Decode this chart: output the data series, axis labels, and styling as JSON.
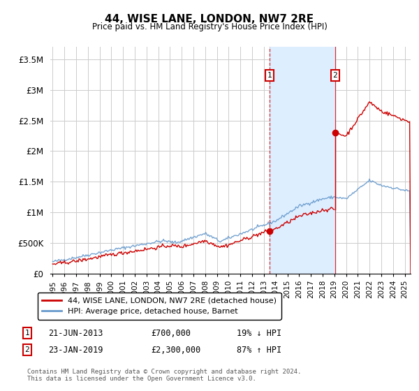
{
  "title": "44, WISE LANE, LONDON, NW7 2RE",
  "subtitle": "Price paid vs. HM Land Registry's House Price Index (HPI)",
  "ylabel_ticks": [
    "£0",
    "£500K",
    "£1M",
    "£1.5M",
    "£2M",
    "£2.5M",
    "£3M",
    "£3.5M"
  ],
  "ytick_values": [
    0,
    500000,
    1000000,
    1500000,
    2000000,
    2500000,
    3000000,
    3500000
  ],
  "ylim": [
    0,
    3700000
  ],
  "xlim_start": 1994.8,
  "xlim_end": 2025.5,
  "sale1_date": 2013.47,
  "sale1_price": 700000,
  "sale1_label": "21-JUN-2013",
  "sale1_text": "£700,000",
  "sale1_pct": "19% ↓ HPI",
  "sale2_date": 2019.06,
  "sale2_price": 2300000,
  "sale2_label": "23-JAN-2019",
  "sale2_text": "£2,300,000",
  "sale2_pct": "87% ↑ HPI",
  "legend_line1": "44, WISE LANE, LONDON, NW7 2RE (detached house)",
  "legend_line2": "HPI: Average price, detached house, Barnet",
  "footer": "Contains HM Land Registry data © Crown copyright and database right 2024.\nThis data is licensed under the Open Government Licence v3.0.",
  "line_color_property": "#cc0000",
  "line_color_hpi": "#6699cc",
  "shade_color": "#ddeeff",
  "marker_box_color": "#cc0000",
  "vline_color": "#cc0000"
}
